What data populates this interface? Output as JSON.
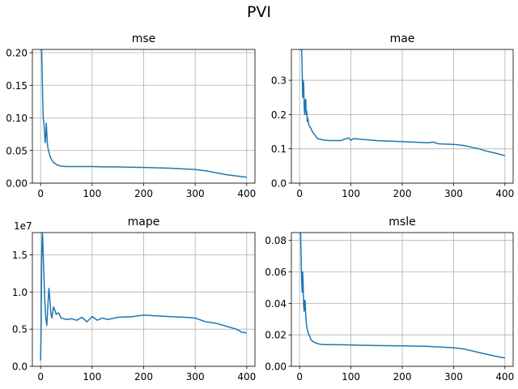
{
  "figure": {
    "suptitle": "PVI",
    "line_color": "#1f77b4",
    "grid_color": "#b0b0b0"
  },
  "chart_data": [
    {
      "type": "line",
      "title": "mse",
      "xlabel": "",
      "ylabel": "",
      "xlim": [
        -16,
        416
      ],
      "ylim": [
        0,
        0.205
      ],
      "xticks": [
        0,
        100,
        200,
        300,
        400
      ],
      "xtick_labels": [
        "0",
        "100",
        "200",
        "300",
        "400"
      ],
      "yticks": [
        0,
        0.05,
        0.1,
        0.15,
        0.2
      ],
      "ytick_labels": [
        "0.00",
        "0.05",
        "0.10",
        "0.15",
        "0.20"
      ],
      "offset_label": "",
      "grid": true,
      "legend": "none",
      "series": [
        {
          "x": [
            0,
            2,
            3,
            4,
            5,
            6,
            7,
            8,
            9,
            10,
            11,
            12,
            13,
            14,
            16,
            18,
            20,
            22,
            25,
            30,
            35,
            40,
            50,
            60,
            80,
            100,
            120,
            150,
            200,
            250,
            300,
            320,
            340,
            360,
            380,
            400
          ],
          "y": [
            0.205,
            0.205,
            0.17,
            0.13,
            0.1,
            0.095,
            0.085,
            0.072,
            0.062,
            0.075,
            0.092,
            0.078,
            0.062,
            0.055,
            0.048,
            0.042,
            0.038,
            0.035,
            0.032,
            0.029,
            0.027,
            0.026,
            0.0255,
            0.0255,
            0.0255,
            0.0255,
            0.025,
            0.0248,
            0.024,
            0.023,
            0.021,
            0.019,
            0.016,
            0.013,
            0.011,
            0.009
          ]
        }
      ]
    },
    {
      "type": "line",
      "title": "mae",
      "xlabel": "",
      "ylabel": "",
      "xlim": [
        -16,
        416
      ],
      "ylim": [
        0,
        0.39
      ],
      "xticks": [
        0,
        100,
        200,
        300,
        400
      ],
      "xtick_labels": [
        "0",
        "100",
        "200",
        "300",
        "400"
      ],
      "yticks": [
        0,
        0.1,
        0.2,
        0.3
      ],
      "ytick_labels": [
        "0.0",
        "0.1",
        "0.2",
        "0.3"
      ],
      "offset_label": "",
      "grid": true,
      "legend": "none",
      "series": [
        {
          "x": [
            0,
            2,
            4,
            5,
            6,
            7,
            8,
            9,
            10,
            11,
            12,
            13,
            14,
            15,
            16,
            18,
            20,
            22,
            25,
            30,
            35,
            40,
            50,
            60,
            80,
            95,
            100,
            105,
            150,
            200,
            250,
            260,
            270,
            300,
            320,
            340,
            350,
            360,
            380,
            400
          ],
          "y": [
            0.39,
            0.39,
            0.39,
            0.33,
            0.25,
            0.3,
            0.29,
            0.22,
            0.2,
            0.24,
            0.245,
            0.2,
            0.21,
            0.18,
            0.19,
            0.17,
            0.165,
            0.16,
            0.15,
            0.14,
            0.13,
            0.128,
            0.125,
            0.124,
            0.124,
            0.132,
            0.125,
            0.13,
            0.124,
            0.121,
            0.118,
            0.12,
            0.115,
            0.113,
            0.11,
            0.103,
            0.1,
            0.095,
            0.088,
            0.08
          ]
        }
      ]
    },
    {
      "type": "line",
      "title": "mape",
      "xlabel": "",
      "ylabel": "",
      "xlim": [
        -16,
        416
      ],
      "ylim": [
        0,
        18000000
      ],
      "xticks": [
        0,
        100,
        200,
        300,
        400
      ],
      "xtick_labels": [
        "0",
        "100",
        "200",
        "300",
        "400"
      ],
      "yticks": [
        0,
        5000000,
        10000000,
        15000000
      ],
      "ytick_labels": [
        "0.0",
        "0.5",
        "1.0",
        "1.5"
      ],
      "offset_label": "1e7",
      "grid": true,
      "legend": "none",
      "series": [
        {
          "x": [
            0,
            1,
            2,
            3,
            4,
            5,
            6,
            7,
            8,
            10,
            12,
            14,
            16,
            18,
            20,
            22,
            25,
            28,
            30,
            35,
            40,
            50,
            60,
            70,
            80,
            90,
            100,
            110,
            120,
            130,
            150,
            180,
            200,
            220,
            250,
            280,
            300,
            320,
            340,
            360,
            380,
            390,
            400
          ],
          "y": [
            800000,
            5000000,
            14000000,
            18000000,
            17500000,
            15000000,
            13000000,
            11000000,
            9000000,
            6500000,
            5500000,
            8000000,
            10500000,
            9000000,
            7000000,
            6500000,
            8000000,
            7500000,
            7000000,
            7200000,
            6500000,
            6300000,
            6400000,
            6200000,
            6600000,
            6000000,
            6700000,
            6200000,
            6500000,
            6300000,
            6600000,
            6700000,
            6900000,
            6800000,
            6700000,
            6600000,
            6500000,
            6000000,
            5800000,
            5400000,
            5000000,
            4600000,
            4500000
          ]
        }
      ]
    },
    {
      "type": "line",
      "title": "msle",
      "xlabel": "",
      "ylabel": "",
      "xlim": [
        -16,
        416
      ],
      "ylim": [
        0,
        0.085
      ],
      "xticks": [
        0,
        100,
        200,
        300,
        400
      ],
      "xtick_labels": [
        "0",
        "100",
        "200",
        "300",
        "400"
      ],
      "yticks": [
        0,
        0.02,
        0.04,
        0.06,
        0.08
      ],
      "ytick_labels": [
        "0.00",
        "0.02",
        "0.04",
        "0.06",
        "0.08"
      ],
      "offset_label": "",
      "grid": true,
      "legend": "none",
      "series": [
        {
          "x": [
            0,
            2,
            3,
            4,
            5,
            6,
            7,
            8,
            9,
            10,
            11,
            12,
            13,
            14,
            16,
            18,
            20,
            22,
            25,
            30,
            35,
            40,
            50,
            60,
            80,
            100,
            120,
            150,
            200,
            250,
            300,
            320,
            340,
            360,
            380,
            400
          ],
          "y": [
            0.085,
            0.085,
            0.07,
            0.055,
            0.047,
            0.06,
            0.052,
            0.038,
            0.035,
            0.042,
            0.041,
            0.032,
            0.028,
            0.025,
            0.022,
            0.02,
            0.019,
            0.017,
            0.016,
            0.015,
            0.0145,
            0.014,
            0.0138,
            0.0138,
            0.0137,
            0.0136,
            0.0134,
            0.0132,
            0.013,
            0.0127,
            0.0118,
            0.011,
            0.0095,
            0.008,
            0.0065,
            0.0053
          ]
        }
      ]
    }
  ]
}
